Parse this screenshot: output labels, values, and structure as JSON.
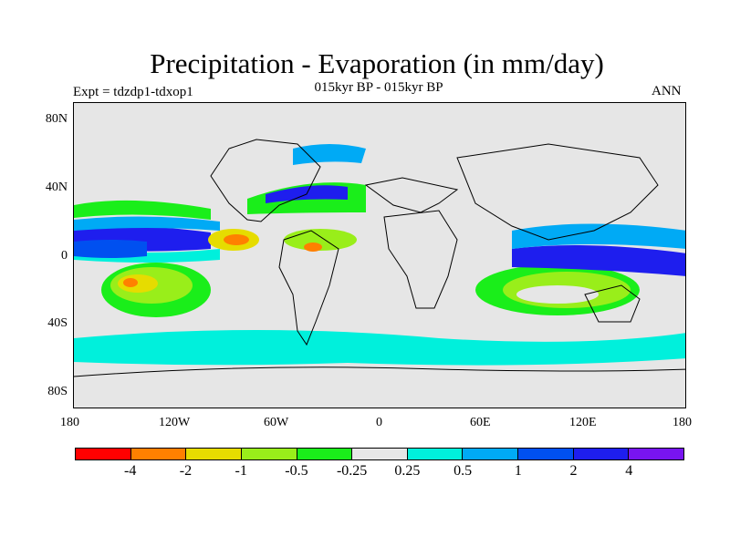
{
  "title": "Precipitation - Evaporation (in mm/day)",
  "subtitle": "015kyr BP - 015kyr BP",
  "left_label": "Expt = tdzdp1-tdxop1",
  "right_label": "ANN",
  "x_ticks": [
    "180",
    "120W",
    "60W",
    "0",
    "60E",
    "120E",
    "180"
  ],
  "y_ticks": [
    "80N",
    "40N",
    "0",
    "40S",
    "80S"
  ],
  "colorbar": {
    "colors": [
      "#ff0000",
      "#ff8000",
      "#e6dc00",
      "#99ee1a",
      "#1aee1a",
      "#e6e6e6",
      "#00f0dc",
      "#00aaf5",
      "#0050f0",
      "#1e1eee",
      "#7814f0"
    ],
    "labels": [
      "-4",
      "-2",
      "-1",
      "-0.5",
      "-0.25",
      "0.25",
      "0.5",
      "1",
      "2",
      "4"
    ]
  },
  "map_data": {
    "projection": "cylindrical equidistant",
    "lon_range": [
      -180,
      180
    ],
    "lat_range": [
      -90,
      90
    ],
    "background_color": "#e6e6e6",
    "coastline_color": "#000000"
  }
}
